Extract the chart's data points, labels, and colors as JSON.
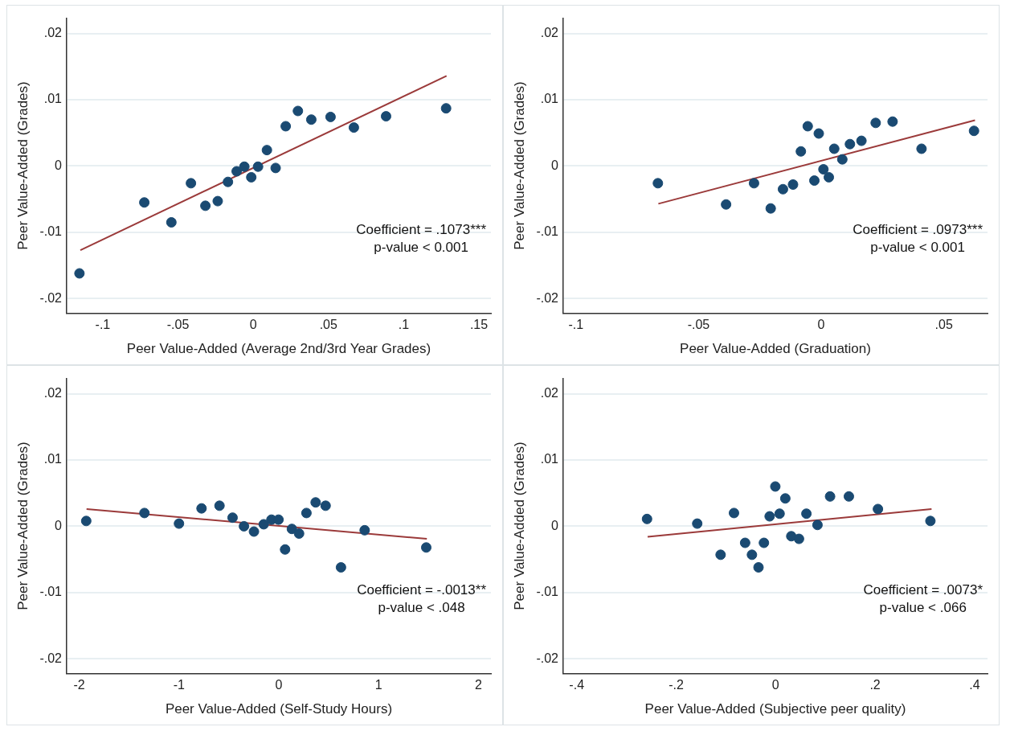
{
  "chart_data": [
    {
      "type": "scatter",
      "xlabel": "Peer Value-Added (Average 2nd/3rd Year Grades)",
      "ylabel": "Peer Value-Added (Grades)",
      "annotations": [
        "Coefficient = .1073***",
        "p-value < 0.001"
      ],
      "xlim": [
        -0.124,
        0.158
      ],
      "ylim": [
        -0.0222,
        0.0223
      ],
      "xticks": [
        {
          "value": -0.1,
          "label": "-.1"
        },
        {
          "value": -0.05,
          "label": "-.05"
        },
        {
          "value": 0,
          "label": "0"
        },
        {
          "value": 0.05,
          "label": ".05"
        },
        {
          "value": 0.1,
          "label": ".1"
        },
        {
          "value": 0.15,
          "label": ".15"
        }
      ],
      "yticks": [
        {
          "value": -0.02,
          "label": "-.02"
        },
        {
          "value": -0.01,
          "label": "-.01"
        },
        {
          "value": 0,
          "label": "0"
        },
        {
          "value": 0.01,
          "label": ".01"
        },
        {
          "value": 0.02,
          "label": ".02"
        }
      ],
      "grid": "y",
      "marker": "circle",
      "series": [
        {
          "color": "#1a4a72",
          "x": [
            -0.1155,
            -0.0724,
            -0.0544,
            -0.0414,
            -0.0318,
            -0.0236,
            -0.0168,
            -0.011,
            -0.0059,
            -0.0013,
            0.0032,
            0.0091,
            0.0149,
            0.0216,
            0.0297,
            0.0386,
            0.0514,
            0.0669,
            0.0883,
            0.1282
          ],
          "values": [
            -0.0162,
            -0.0055,
            -0.0085,
            -0.0026,
            -0.006,
            -0.0053,
            -0.0024,
            -0.0008,
            -0.0001,
            -0.0017,
            -0.0001,
            0.0024,
            -0.0003,
            0.006,
            0.0083,
            0.007,
            0.0074,
            0.0058,
            0.0075,
            0.0087
          ]
        },
        {
          "type": "line",
          "marker": "none",
          "color": "#9b3a3a",
          "x": [
            -0.1149,
            0.1285
          ],
          "values": [
            -0.0127,
            0.0136
          ]
        }
      ]
    },
    {
      "type": "scatter",
      "xlabel": "Peer Value-Added (Graduation)",
      "ylabel": "Peer Value-Added (Grades)",
      "annotations": [
        "Coefficient = .0973***",
        "p-value < 0.001"
      ],
      "xlim": [
        -0.1052,
        0.0678
      ],
      "ylim": [
        -0.0222,
        0.0223
      ],
      "xticks": [
        {
          "value": -0.1,
          "label": "-.1"
        },
        {
          "value": -0.05,
          "label": "-.05"
        },
        {
          "value": 0,
          "label": "0"
        },
        {
          "value": 0.05,
          "label": ".05"
        }
      ],
      "yticks": [
        {
          "value": -0.02,
          "label": "-.02"
        },
        {
          "value": -0.01,
          "label": "-.01"
        },
        {
          "value": 0,
          "label": "0"
        },
        {
          "value": 0.01,
          "label": ".01"
        },
        {
          "value": 0.02,
          "label": ".02"
        }
      ],
      "grid": "y",
      "marker": "circle",
      "series": [
        {
          "color": "#1a4a72",
          "x": [
            -0.0666,
            -0.0388,
            -0.0274,
            -0.0206,
            -0.0156,
            -0.0115,
            -0.0083,
            -0.0055,
            -0.0028,
            -0.001,
            0.0009,
            0.0031,
            0.0053,
            0.0086,
            0.0117,
            0.0164,
            0.0222,
            0.0291,
            0.0409,
            0.0623
          ],
          "values": [
            -0.0026,
            -0.0058,
            -0.0026,
            -0.0064,
            -0.0035,
            -0.0028,
            0.0022,
            0.006,
            -0.0022,
            0.0049,
            -0.0005,
            -0.0017,
            0.0026,
            0.001,
            0.0033,
            0.0038,
            0.0065,
            0.0067,
            0.0026,
            0.0053
          ]
        },
        {
          "type": "line",
          "marker": "none",
          "color": "#9b3a3a",
          "x": [
            -0.0664,
            0.0627
          ],
          "values": [
            -0.0057,
            0.0069
          ]
        }
      ]
    },
    {
      "type": "scatter",
      "xlabel": "Peer Value-Added (Self-Study Hours)",
      "ylabel": "Peer Value-Added (Grades)",
      "annotations": [
        "Coefficient = -.0013**",
        "p-value < .048"
      ],
      "xlim": [
        -2.125,
        2.125
      ],
      "ylim": [
        -0.0222,
        0.0223
      ],
      "xticks": [
        -2,
        -1,
        {
          "value": 0,
          "label": "0"
        },
        1,
        2
      ],
      "yticks": [
        {
          "value": -0.02,
          "label": "-.02"
        },
        {
          "value": -0.01,
          "label": "-.01"
        },
        {
          "value": 0,
          "label": "0"
        },
        {
          "value": 0.01,
          "label": ".01"
        },
        {
          "value": 0.02,
          "label": ".02"
        }
      ],
      "grid": "y",
      "marker": "circle",
      "series": [
        {
          "color": "#1a4a72",
          "x": [
            -1.929,
            -1.346,
            -1.0,
            -0.774,
            -0.594,
            -0.463,
            -0.349,
            -0.249,
            -0.151,
            -0.074,
            -0.003,
            0.063,
            0.131,
            0.203,
            0.277,
            0.369,
            0.469,
            0.623,
            0.86,
            1.477
          ],
          "values": [
            0.0008,
            0.002,
            0.0004,
            0.0027,
            0.0031,
            0.0013,
            0.0,
            -0.0008,
            0.0003,
            0.001,
            0.001,
            -0.0035,
            -0.0004,
            -0.0011,
            0.002,
            0.0036,
            0.0031,
            -0.0062,
            -0.0006,
            -0.0032
          ]
        },
        {
          "type": "line",
          "marker": "none",
          "color": "#9b3a3a",
          "x": [
            -1.926,
            1.483
          ],
          "values": [
            0.0026,
            -0.0019
          ]
        }
      ]
    },
    {
      "type": "scatter",
      "xlabel": "Peer Value-Added (Subjective peer quality)",
      "ylabel": "Peer Value-Added (Grades)",
      "annotations": [
        "Coefficient = .0073*",
        "p-value < .066"
      ],
      "xlim": [
        -0.427,
        0.426
      ],
      "ylim": [
        -0.0222,
        0.0223
      ],
      "xticks": [
        {
          "value": -0.4,
          "label": "-.4"
        },
        {
          "value": -0.2,
          "label": "-.2"
        },
        {
          "value": 0,
          "label": "0"
        },
        {
          "value": 0.2,
          "label": ".2"
        },
        {
          "value": 0.4,
          "label": ".4"
        }
      ],
      "yticks": [
        {
          "value": -0.02,
          "label": "-.02"
        },
        {
          "value": -0.01,
          "label": "-.01"
        },
        {
          "value": 0,
          "label": "0"
        },
        {
          "value": 0.01,
          "label": ".01"
        },
        {
          "value": 0.02,
          "label": ".02"
        }
      ],
      "grid": "y",
      "marker": "circle",
      "series": [
        {
          "color": "#1a4a72",
          "x": [
            -0.2585,
            -0.1576,
            -0.1106,
            -0.0837,
            -0.0613,
            -0.0476,
            -0.0344,
            -0.0235,
            -0.012,
            -0.0006,
            0.008,
            0.0195,
            0.0315,
            0.047,
            0.0619,
            0.0842,
            0.1095,
            0.1473,
            0.2057,
            0.3112
          ],
          "values": [
            0.0011,
            0.0004,
            -0.0043,
            0.002,
            -0.0025,
            -0.0043,
            -0.0062,
            -0.0025,
            0.0015,
            0.006,
            0.0019,
            0.0042,
            -0.0015,
            -0.0019,
            0.0019,
            0.0002,
            0.0045,
            0.0045,
            0.0026,
            0.0008
          ]
        },
        {
          "type": "line",
          "marker": "none",
          "color": "#9b3a3a",
          "x": [
            -0.2573,
            0.3135
          ],
          "values": [
            -0.0016,
            0.0026
          ]
        }
      ]
    }
  ]
}
